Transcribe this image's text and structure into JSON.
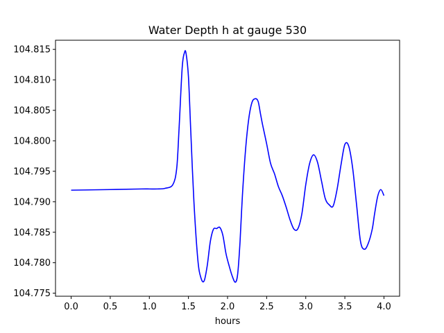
{
  "chart_data": {
    "type": "line",
    "title": "Water Depth h at gauge 530",
    "xlabel": "hours",
    "ylabel": "",
    "xlim": [
      -0.2,
      4.2
    ],
    "ylim": [
      104.7745,
      104.8165
    ],
    "xticks": [
      0.0,
      0.5,
      1.0,
      1.5,
      2.0,
      2.5,
      3.0,
      3.5,
      4.0
    ],
    "xtick_labels": [
      "0.0",
      "0.5",
      "1.0",
      "1.5",
      "2.0",
      "2.5",
      "3.0",
      "3.5",
      "4.0"
    ],
    "yticks": [
      104.775,
      104.78,
      104.785,
      104.79,
      104.795,
      104.8,
      104.805,
      104.81,
      104.815
    ],
    "ytick_labels": [
      "104.775",
      "104.780",
      "104.785",
      "104.790",
      "104.795",
      "104.800",
      "104.805",
      "104.810",
      "104.815"
    ],
    "grid": false,
    "series": [
      {
        "color": "#0000ff",
        "x": [
          0.0,
          0.5,
          0.9,
          1.0,
          1.1,
          1.2,
          1.3,
          1.35,
          1.38,
          1.42,
          1.45,
          1.47,
          1.5,
          1.53,
          1.57,
          1.62,
          1.66,
          1.7,
          1.74,
          1.78,
          1.82,
          1.86,
          1.9,
          1.94,
          1.98,
          2.02,
          2.06,
          2.1,
          2.13,
          2.16,
          2.19,
          2.23,
          2.27,
          2.31,
          2.35,
          2.39,
          2.42,
          2.45,
          2.5,
          2.55,
          2.6,
          2.65,
          2.7,
          2.75,
          2.8,
          2.85,
          2.9,
          2.95,
          3.0,
          3.05,
          3.1,
          3.15,
          3.2,
          3.25,
          3.3,
          3.35,
          3.4,
          3.45,
          3.5,
          3.55,
          3.6,
          3.65,
          3.7,
          3.75,
          3.8,
          3.85,
          3.88,
          3.92,
          3.96,
          4.0
        ],
        "y": [
          104.7919,
          104.792,
          104.7921,
          104.7921,
          104.7921,
          104.7922,
          104.7928,
          104.7955,
          104.802,
          104.812,
          104.8145,
          104.8143,
          104.8105,
          104.8015,
          104.79,
          104.7805,
          104.7775,
          104.777,
          104.7795,
          104.7835,
          104.7855,
          104.7856,
          104.7858,
          104.7845,
          104.7815,
          104.7795,
          104.7778,
          104.7768,
          104.7782,
          104.7835,
          104.791,
          104.7985,
          104.8035,
          104.8062,
          104.8069,
          104.8065,
          104.8045,
          104.8025,
          104.7995,
          104.7963,
          104.7946,
          104.7925,
          104.791,
          104.7891,
          104.787,
          104.7855,
          104.7856,
          104.788,
          104.7928,
          104.7963,
          104.7977,
          104.7965,
          104.7935,
          104.7905,
          104.7895,
          104.7893,
          104.792,
          104.796,
          104.7994,
          104.7991,
          104.7955,
          104.7895,
          104.7835,
          104.7822,
          104.7832,
          104.7855,
          104.788,
          104.7909,
          104.792,
          104.791
        ]
      }
    ]
  }
}
